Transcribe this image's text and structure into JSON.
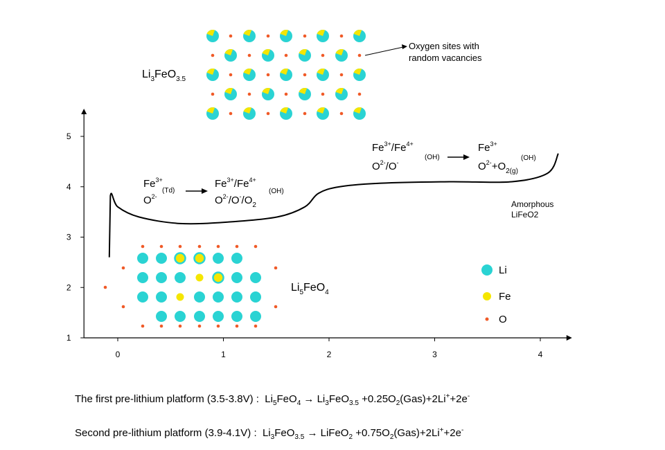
{
  "chart_data": {
    "type": "line",
    "x": [
      -0.08,
      -0.07,
      0,
      0.2,
      0.59,
      1.05,
      1.51,
      1.77,
      1.9,
      2.1,
      2.49,
      3.14,
      3.73,
      4.07,
      4.17
    ],
    "values": [
      2.6,
      3.82,
      3.6,
      3.4,
      3.27,
      3.3,
      3.4,
      3.6,
      3.87,
      4.0,
      4.07,
      4.1,
      4.1,
      4.27,
      4.66
    ],
    "color": "#000000",
    "xlim": [
      -0.32,
      4.3
    ],
    "ylim": [
      1,
      5.55
    ],
    "xticks": [
      0,
      1,
      2,
      3,
      4
    ],
    "yticks": [
      1,
      2,
      3,
      4,
      5
    ]
  },
  "labels": {
    "top_structure": [
      "Li",
      "3",
      "FeO",
      "3.5"
    ],
    "oxygen_note": [
      "Oxygen sites with",
      "random vacancies"
    ],
    "bottom_structure": [
      "Li",
      "5",
      "FeO",
      "4"
    ],
    "step1_left": [
      "Fe",
      "3+",
      "(Td)",
      "O",
      "2-"
    ],
    "step1_right": [
      "Fe",
      "3+",
      "/Fe",
      "4+",
      "(OH)",
      "O",
      "2-",
      "/O",
      "-",
      "/O",
      "2"
    ],
    "step2_left": [
      "Fe",
      "3+",
      "/Fe",
      "4+",
      "(OH)",
      "O",
      "2-",
      "/O",
      "-"
    ],
    "step2_right": [
      "Fe",
      "3+",
      "(OH)",
      "O",
      "2-",
      "+O",
      "2(g)"
    ],
    "amorphous": [
      "Amorphous",
      "LiFeO2"
    ],
    "legend": [
      "Li",
      "Fe",
      "O"
    ]
  },
  "equations": [
    [
      "The first pre-lithium platform (3.5-3.8V) :  Li",
      "5",
      "FeO",
      "4",
      " → Li",
      "3",
      "FeO",
      "3.5",
      " +0.25O",
      "2",
      "(Gas)+2Li",
      "+",
      "+2e",
      "-"
    ],
    [
      "Second pre-lithium platform (3.9-4.1V) :  Li",
      "3",
      "FeO",
      "3.5",
      " → LiFeO",
      "2",
      " +0.75O",
      "2",
      "(Gas)+2Li",
      "+",
      "+2e",
      "-"
    ]
  ]
}
